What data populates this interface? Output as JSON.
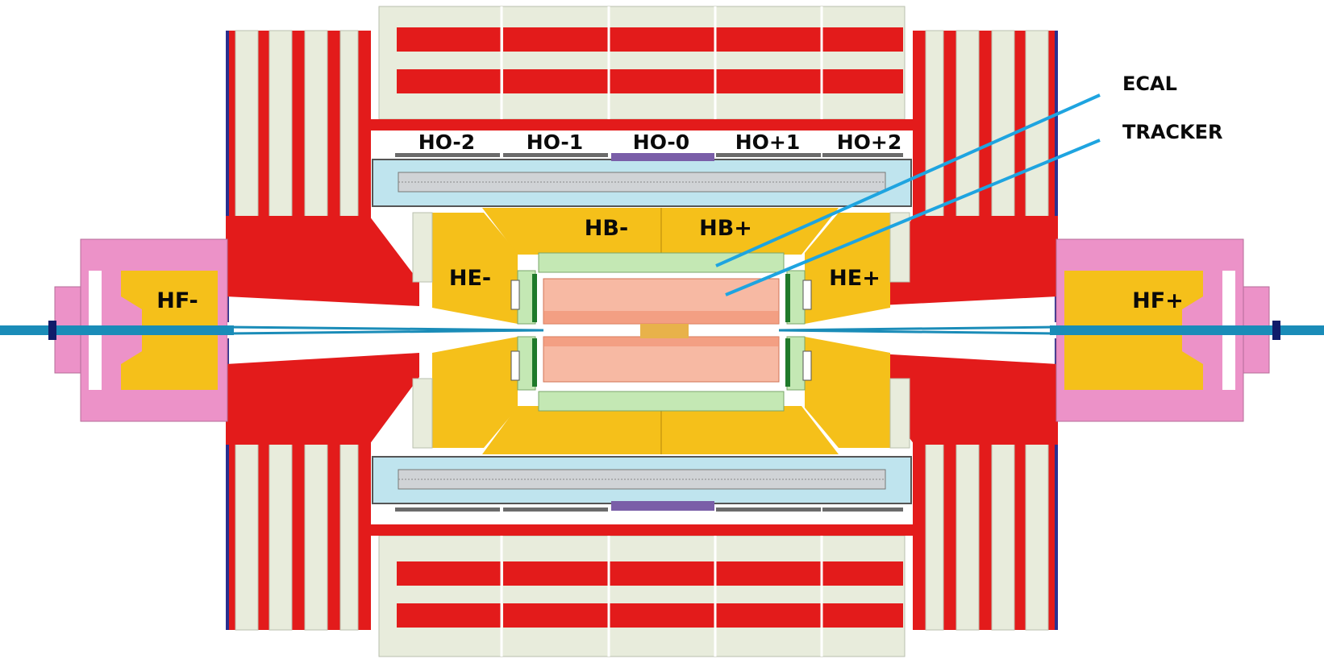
{
  "diagram": {
    "labels": {
      "hb_minus": "HB-",
      "hb_plus": "HB+",
      "he_minus": "HE-",
      "he_plus": "HE+",
      "hf_minus": "HF-",
      "hf_plus": "HF+",
      "ho_m2": "HO-2",
      "ho_m1": "HO-1",
      "ho_0": "HO-0",
      "ho_p1": "HO+1",
      "ho_p2": "HO+2"
    },
    "callouts": {
      "ecal": "ECAL",
      "tracker": "TRACKER"
    },
    "colors": {
      "yoke_red": "#e31b1b",
      "steel_cream": "#e8ecdc",
      "hcal_gold": "#f5c01a",
      "ecal_green": "#c4e8b4",
      "tracker_salmon": "#f7b9a3",
      "tracker_edge": "#f08a6a",
      "hf_pink": "#ec92c8",
      "coil_blue": "#bfe4ee",
      "beam_blue": "#1a8cb8",
      "leader_blue": "#1ea4e0",
      "ho_purple": "#7a5ea8"
    }
  }
}
